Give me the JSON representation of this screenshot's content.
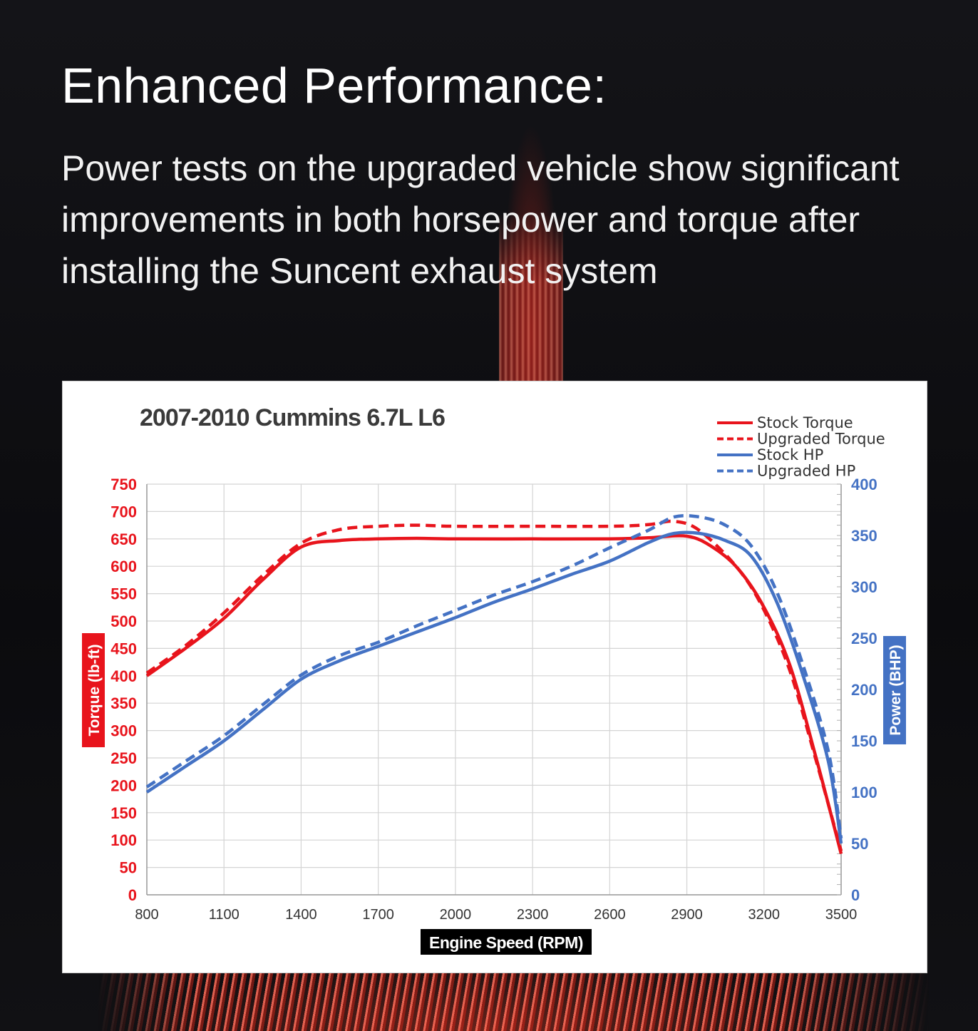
{
  "headline": "Enhanced Performance:",
  "body": "Power tests on the upgraded vehicle show significant improvements in both horsepower and torque after installing the Suncent exhaust system",
  "chart_data": {
    "type": "line",
    "title": "2007-2010 Cummins 6.7L  L6",
    "xlabel": "Engine Speed (RPM)",
    "ylabel_left": "Torque (lb-ft)",
    "ylabel_right": "Power (BHP)",
    "xlim": [
      800,
      3500
    ],
    "ylim_left": [
      0,
      750
    ],
    "ylim_right": [
      0,
      400
    ],
    "x_ticks": [
      800,
      1100,
      1400,
      1700,
      2000,
      2300,
      2600,
      2900,
      3200,
      3500
    ],
    "y_left_ticks": [
      0,
      50,
      100,
      150,
      200,
      250,
      300,
      350,
      400,
      450,
      500,
      550,
      600,
      650,
      700,
      750
    ],
    "y_right_ticks": [
      0,
      50,
      100,
      150,
      200,
      250,
      300,
      350,
      400
    ],
    "grid": true,
    "legend_position": "top-right",
    "colors": {
      "torque": "#e8141c",
      "hp": "#4472c4",
      "grid": "#d4d4d4",
      "title": "#3a3a3a"
    },
    "series": [
      {
        "name": "Stock Torque",
        "axis": "left",
        "dash": false,
        "x": [
          800,
          950,
          1100,
          1250,
          1400,
          1550,
          1700,
          1850,
          2000,
          2300,
          2600,
          2750,
          2900,
          3000,
          3100,
          3200,
          3300,
          3400,
          3500
        ],
        "y": [
          400,
          450,
          505,
          575,
          635,
          647,
          650,
          651,
          650,
          650,
          650,
          652,
          655,
          635,
          595,
          525,
          420,
          255,
          75
        ]
      },
      {
        "name": "Upgraded Torque",
        "axis": "left",
        "dash": true,
        "x": [
          800,
          950,
          1100,
          1250,
          1400,
          1550,
          1700,
          1850,
          2000,
          2300,
          2600,
          2750,
          2850,
          2950,
          3100,
          3200,
          3300,
          3400,
          3500
        ],
        "y": [
          405,
          455,
          515,
          583,
          642,
          667,
          673,
          675,
          673,
          673,
          673,
          676,
          682,
          665,
          595,
          520,
          410,
          250,
          80
        ]
      },
      {
        "name": "Stock HP",
        "axis": "right",
        "dash": false,
        "x": [
          800,
          950,
          1100,
          1250,
          1400,
          1550,
          1700,
          1850,
          2000,
          2150,
          2300,
          2450,
          2600,
          2750,
          2850,
          2950,
          3050,
          3150,
          3250,
          3350,
          3450,
          3500
        ],
        "y": [
          100,
          125,
          150,
          180,
          210,
          228,
          242,
          256,
          270,
          285,
          298,
          312,
          325,
          343,
          352,
          352,
          345,
          330,
          285,
          215,
          130,
          50
        ]
      },
      {
        "name": "Upgraded HP",
        "axis": "right",
        "dash": true,
        "x": [
          800,
          950,
          1100,
          1250,
          1400,
          1550,
          1700,
          1850,
          2000,
          2150,
          2300,
          2450,
          2600,
          2750,
          2850,
          2950,
          3050,
          3150,
          3250,
          3350,
          3450,
          3500
        ],
        "y": [
          105,
          130,
          155,
          185,
          214,
          233,
          246,
          262,
          277,
          292,
          305,
          320,
          338,
          355,
          368,
          368,
          360,
          340,
          295,
          225,
          140,
          55
        ]
      }
    ]
  }
}
